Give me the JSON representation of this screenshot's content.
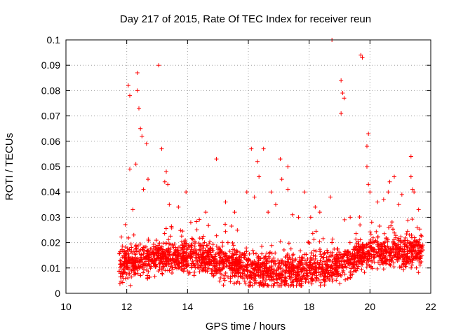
{
  "chart_data": {
    "type": "scatter",
    "title": "Day 217 of 2015, Rate Of TEC Index for receiver reun",
    "xlabel": "GPS time / hours",
    "ylabel": "ROTI / TECUs",
    "xlim": [
      10,
      22
    ],
    "ylim": [
      0,
      0.1
    ],
    "x_ticks": [
      10,
      12,
      14,
      16,
      18,
      20,
      22
    ],
    "x_tick_labels": [
      "10",
      "12",
      "14",
      "16",
      "18",
      "20",
      "22"
    ],
    "y_ticks": [
      0,
      0.01,
      0.02,
      0.03,
      0.04,
      0.05,
      0.06,
      0.07,
      0.08,
      0.09,
      0.1
    ],
    "y_tick_labels": [
      "0",
      "0.01",
      "0.02",
      "0.03",
      "0.04",
      "0.05",
      "0.06",
      "0.07",
      "0.08",
      "0.09",
      "0.1"
    ],
    "grid": true,
    "marker": "plus",
    "color": "#ff0000",
    "series": [
      {
        "name": "ROTI",
        "x_range": [
          11.75,
          21.75
        ],
        "typical_range": [
          0.005,
          0.022
        ],
        "points": [
          [
            12.05,
            0.082
          ],
          [
            12.1,
            0.078
          ],
          [
            12.35,
            0.087
          ],
          [
            12.35,
            0.08
          ],
          [
            12.4,
            0.073
          ],
          [
            12.45,
            0.065
          ],
          [
            12.5,
            0.062
          ],
          [
            12.1,
            0.049
          ],
          [
            12.3,
            0.051
          ],
          [
            12.65,
            0.059
          ],
          [
            13.05,
            0.09
          ],
          [
            13.15,
            0.057
          ],
          [
            13.3,
            0.048
          ],
          [
            13.35,
            0.043
          ],
          [
            13.95,
            0.04
          ],
          [
            12.7,
            0.045
          ],
          [
            12.55,
            0.041
          ],
          [
            13.25,
            0.044
          ],
          [
            13.4,
            0.035
          ],
          [
            12.2,
            0.033
          ],
          [
            14.95,
            0.053
          ],
          [
            15.25,
            0.036
          ],
          [
            15.95,
            0.04
          ],
          [
            16.1,
            0.057
          ],
          [
            16.3,
            0.052
          ],
          [
            16.5,
            0.057
          ],
          [
            16.35,
            0.046
          ],
          [
            16.75,
            0.04
          ],
          [
            17.05,
            0.053
          ],
          [
            17.1,
            0.045
          ],
          [
            17.3,
            0.05
          ],
          [
            17.3,
            0.041
          ],
          [
            17.85,
            0.04
          ],
          [
            16.2,
            0.038
          ],
          [
            16.9,
            0.035
          ],
          [
            17.45,
            0.031
          ],
          [
            18.05,
            0.03
          ],
          [
            18.35,
            0.032
          ],
          [
            18.75,
            0.1
          ],
          [
            19.05,
            0.084
          ],
          [
            19.1,
            0.079
          ],
          [
            19.15,
            0.077
          ],
          [
            19.05,
            0.071
          ],
          [
            19.7,
            0.094
          ],
          [
            19.75,
            0.093
          ],
          [
            19.95,
            0.063
          ],
          [
            19.9,
            0.058
          ],
          [
            19.9,
            0.05
          ],
          [
            19.95,
            0.043
          ],
          [
            20.0,
            0.04
          ],
          [
            20.25,
            0.036
          ],
          [
            20.65,
            0.044
          ],
          [
            20.8,
            0.046
          ],
          [
            20.6,
            0.04
          ],
          [
            21.05,
            0.039
          ],
          [
            21.35,
            0.054
          ],
          [
            21.35,
            0.046
          ],
          [
            21.4,
            0.041
          ],
          [
            21.45,
            0.04
          ],
          [
            21.6,
            0.033
          ],
          [
            18.7,
            0.038
          ],
          [
            19.35,
            0.03
          ],
          [
            18.2,
            0.034
          ],
          [
            20.45,
            0.037
          ],
          [
            15.55,
            0.032
          ],
          [
            14.6,
            0.032
          ],
          [
            13.7,
            0.034
          ],
          [
            16.65,
            0.032
          ],
          [
            17.65,
            0.03
          ],
          [
            20.95,
            0.035
          ]
        ]
      }
    ]
  }
}
